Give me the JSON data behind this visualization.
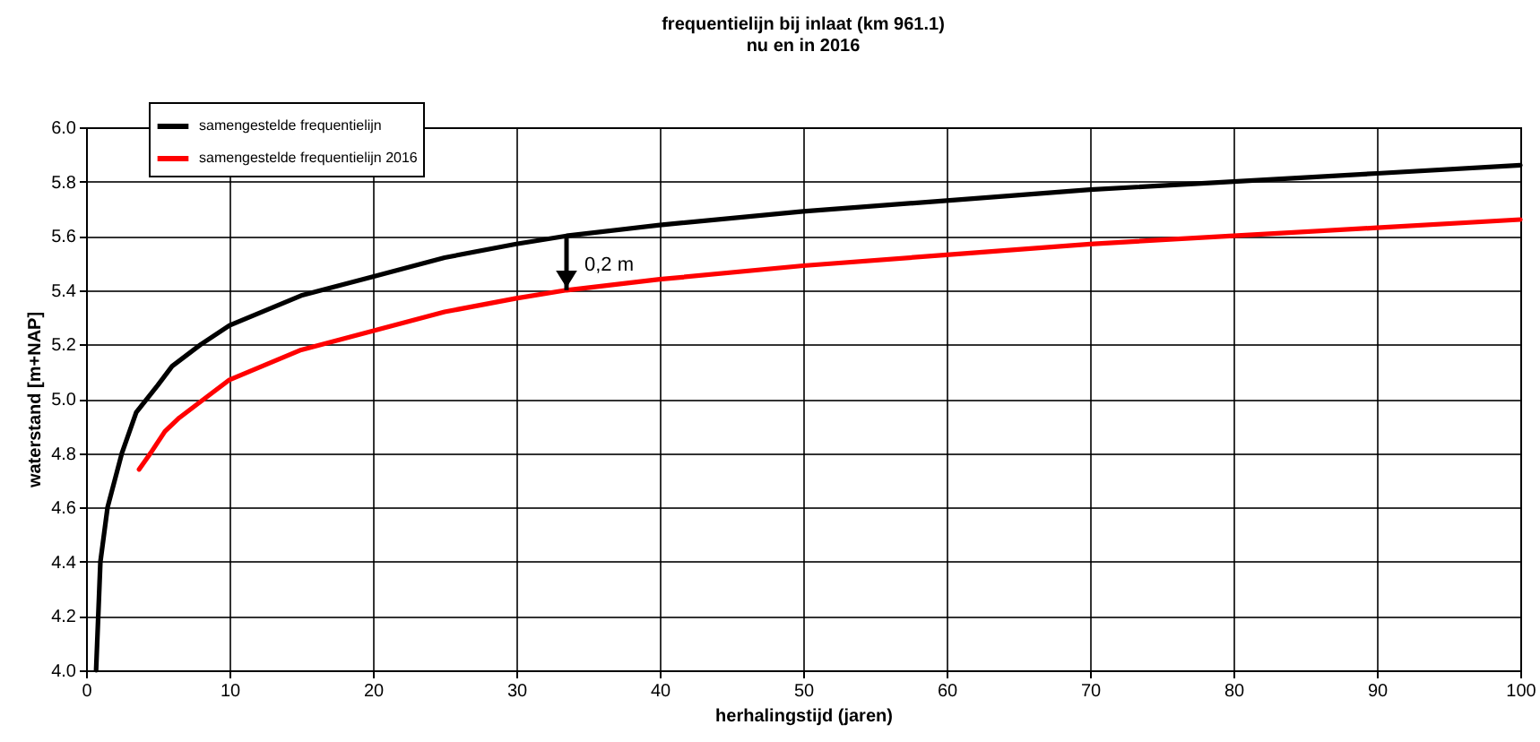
{
  "chart_data": {
    "type": "line",
    "title": "frequentielijn bij inlaat (km 961.1)",
    "subtitle": "nu en in 2016",
    "xlabel": "herhalingstijd (jaren)",
    "ylabel": "waterstand [m+NAP]",
    "xlim": [
      0,
      100
    ],
    "xticks": [
      0,
      10,
      20,
      30,
      40,
      50,
      60,
      70,
      80,
      90,
      100
    ],
    "ylim": [
      4.0,
      6.0
    ],
    "yticks": [
      {
        "value": 4.0,
        "label": "4.0"
      },
      {
        "value": 4.2,
        "label": "4.2"
      },
      {
        "value": 4.4,
        "label": "4.4"
      },
      {
        "value": 4.6,
        "label": "4.6"
      },
      {
        "value": 4.8,
        "label": "4.8"
      },
      {
        "value": 5.0,
        "label": "5.0"
      },
      {
        "value": 5.2,
        "label": "5.2"
      },
      {
        "value": 5.4,
        "label": "5.4"
      },
      {
        "value": 5.6,
        "label": "5.6"
      },
      {
        "value": 5.8,
        "label": "5.8"
      },
      {
        "value": 6.0,
        "label": "6.0"
      }
    ],
    "grid": true,
    "legend": "top left",
    "marker": "none",
    "line_style": "solid",
    "annotations": [
      {
        "text": "0,2 m",
        "x": 33.5,
        "y": 5.4
      }
    ],
    "series": [
      {
        "name": "samengestelde frequentielijn",
        "color": "#000000",
        "x": [
          0.7,
          1.0,
          1.5,
          2.5,
          3.5,
          5,
          6,
          8,
          10,
          15,
          20,
          25,
          30,
          33.5,
          40,
          50,
          60,
          70,
          80,
          90,
          100
        ],
        "values": [
          4.0,
          4.4,
          4.6,
          4.8,
          4.95,
          5.05,
          5.12,
          5.2,
          5.27,
          5.38,
          5.45,
          5.52,
          5.57,
          5.6,
          5.64,
          5.69,
          5.73,
          5.77,
          5.8,
          5.83,
          5.86
        ]
      },
      {
        "name": "samengestelde frequentielijn 2016",
        "color": "#ff0000",
        "x": [
          3.7,
          4.5,
          5.5,
          6.5,
          8,
          10,
          15,
          20,
          25,
          30,
          33.5,
          40,
          50,
          60,
          70,
          80,
          90,
          100
        ],
        "values": [
          4.74,
          4.8,
          4.88,
          4.93,
          4.99,
          5.07,
          5.18,
          5.25,
          5.32,
          5.37,
          5.4,
          5.44,
          5.49,
          5.53,
          5.57,
          5.6,
          5.63,
          5.66
        ]
      }
    ]
  }
}
